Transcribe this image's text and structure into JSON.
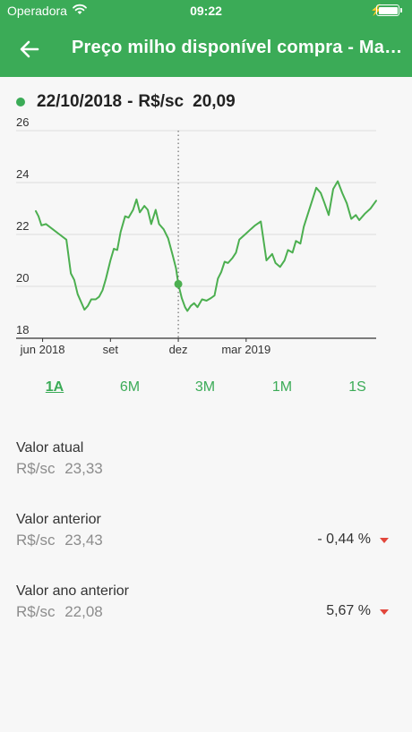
{
  "status_bar": {
    "carrier": "Operadora",
    "time": "09:22"
  },
  "header": {
    "title": "Preço milho disponível compra - Mato Grosso"
  },
  "selected_point": {
    "date": "22/10/2018",
    "separator": "-",
    "unit": "R$/sc",
    "value": "20,09"
  },
  "colors": {
    "brand": "#3bab57",
    "line": "#4caf50",
    "down": "#e2463b"
  },
  "chart_data": {
    "type": "line",
    "ylim": [
      18,
      26
    ],
    "y_ticks": [
      "26",
      "24",
      "22",
      "20",
      "18"
    ],
    "x_ticks": [
      "jun 2018",
      "set",
      "dez",
      "mar 2019"
    ],
    "x_tick_positions": [
      0.3,
      3.3,
      6.3,
      9.3
    ],
    "grid": true,
    "series": [
      {
        "values": [
          [
            0.0,
            22.9
          ],
          [
            0.12,
            22.7
          ],
          [
            0.25,
            22.35
          ],
          [
            0.45,
            22.4
          ],
          [
            0.75,
            22.2
          ],
          [
            1.05,
            22.0
          ],
          [
            1.35,
            21.8
          ],
          [
            1.55,
            20.5
          ],
          [
            1.7,
            20.25
          ],
          [
            1.85,
            19.7
          ],
          [
            2.0,
            19.4
          ],
          [
            2.15,
            19.1
          ],
          [
            2.3,
            19.25
          ],
          [
            2.45,
            19.5
          ],
          [
            2.65,
            19.5
          ],
          [
            2.8,
            19.6
          ],
          [
            2.95,
            19.85
          ],
          [
            3.1,
            20.3
          ],
          [
            3.3,
            21.0
          ],
          [
            3.45,
            21.45
          ],
          [
            3.6,
            21.4
          ],
          [
            3.75,
            22.1
          ],
          [
            3.95,
            22.7
          ],
          [
            4.1,
            22.65
          ],
          [
            4.3,
            22.95
          ],
          [
            4.45,
            23.35
          ],
          [
            4.6,
            22.85
          ],
          [
            4.8,
            23.1
          ],
          [
            4.95,
            22.95
          ],
          [
            5.1,
            22.4
          ],
          [
            5.3,
            22.95
          ],
          [
            5.45,
            22.4
          ],
          [
            5.65,
            22.2
          ],
          [
            5.85,
            21.85
          ],
          [
            6.05,
            21.2
          ],
          [
            6.2,
            20.7
          ],
          [
            6.3,
            20.09
          ],
          [
            6.45,
            19.55
          ],
          [
            6.6,
            19.2
          ],
          [
            6.7,
            19.05
          ],
          [
            6.85,
            19.25
          ],
          [
            7.0,
            19.35
          ],
          [
            7.15,
            19.2
          ],
          [
            7.35,
            19.5
          ],
          [
            7.55,
            19.45
          ],
          [
            7.75,
            19.55
          ],
          [
            7.9,
            19.65
          ],
          [
            8.05,
            20.3
          ],
          [
            8.2,
            20.55
          ],
          [
            8.35,
            20.95
          ],
          [
            8.5,
            20.9
          ],
          [
            8.7,
            21.1
          ],
          [
            8.85,
            21.3
          ],
          [
            9.0,
            21.8
          ],
          [
            9.25,
            22.0
          ],
          [
            9.5,
            22.2
          ],
          [
            9.7,
            22.35
          ],
          [
            9.95,
            22.5
          ],
          [
            10.2,
            21.0
          ],
          [
            10.45,
            21.25
          ],
          [
            10.6,
            20.9
          ],
          [
            10.8,
            20.75
          ],
          [
            11.0,
            21.0
          ],
          [
            11.15,
            21.4
          ],
          [
            11.35,
            21.3
          ],
          [
            11.5,
            21.75
          ],
          [
            11.7,
            21.65
          ],
          [
            11.85,
            22.3
          ],
          [
            12.05,
            22.85
          ],
          [
            12.2,
            23.25
          ],
          [
            12.4,
            23.8
          ],
          [
            12.6,
            23.6
          ],
          [
            12.75,
            23.25
          ],
          [
            12.95,
            22.75
          ],
          [
            13.15,
            23.75
          ],
          [
            13.35,
            24.05
          ],
          [
            13.55,
            23.6
          ],
          [
            13.75,
            23.2
          ],
          [
            13.95,
            22.6
          ],
          [
            14.15,
            22.75
          ],
          [
            14.3,
            22.55
          ],
          [
            14.55,
            22.8
          ],
          [
            14.8,
            23.0
          ],
          [
            15.05,
            23.3
          ]
        ]
      }
    ],
    "selected_index": 36
  },
  "ranges": [
    {
      "label": "1A",
      "active": true
    },
    {
      "label": "6M",
      "active": false
    },
    {
      "label": "3M",
      "active": false
    },
    {
      "label": "1M",
      "active": false
    },
    {
      "label": "1S",
      "active": false
    }
  ],
  "stats": {
    "atual": {
      "label": "Valor atual",
      "unit": "R$/sc",
      "value": "23,33"
    },
    "anterior": {
      "label": "Valor anterior",
      "unit": "R$/sc",
      "value": "23,43",
      "change": "- 0,44 %"
    },
    "ano_anterior": {
      "label": "Valor ano anterior",
      "unit": "R$/sc",
      "value": "22,08",
      "change": "5,67 %"
    }
  }
}
